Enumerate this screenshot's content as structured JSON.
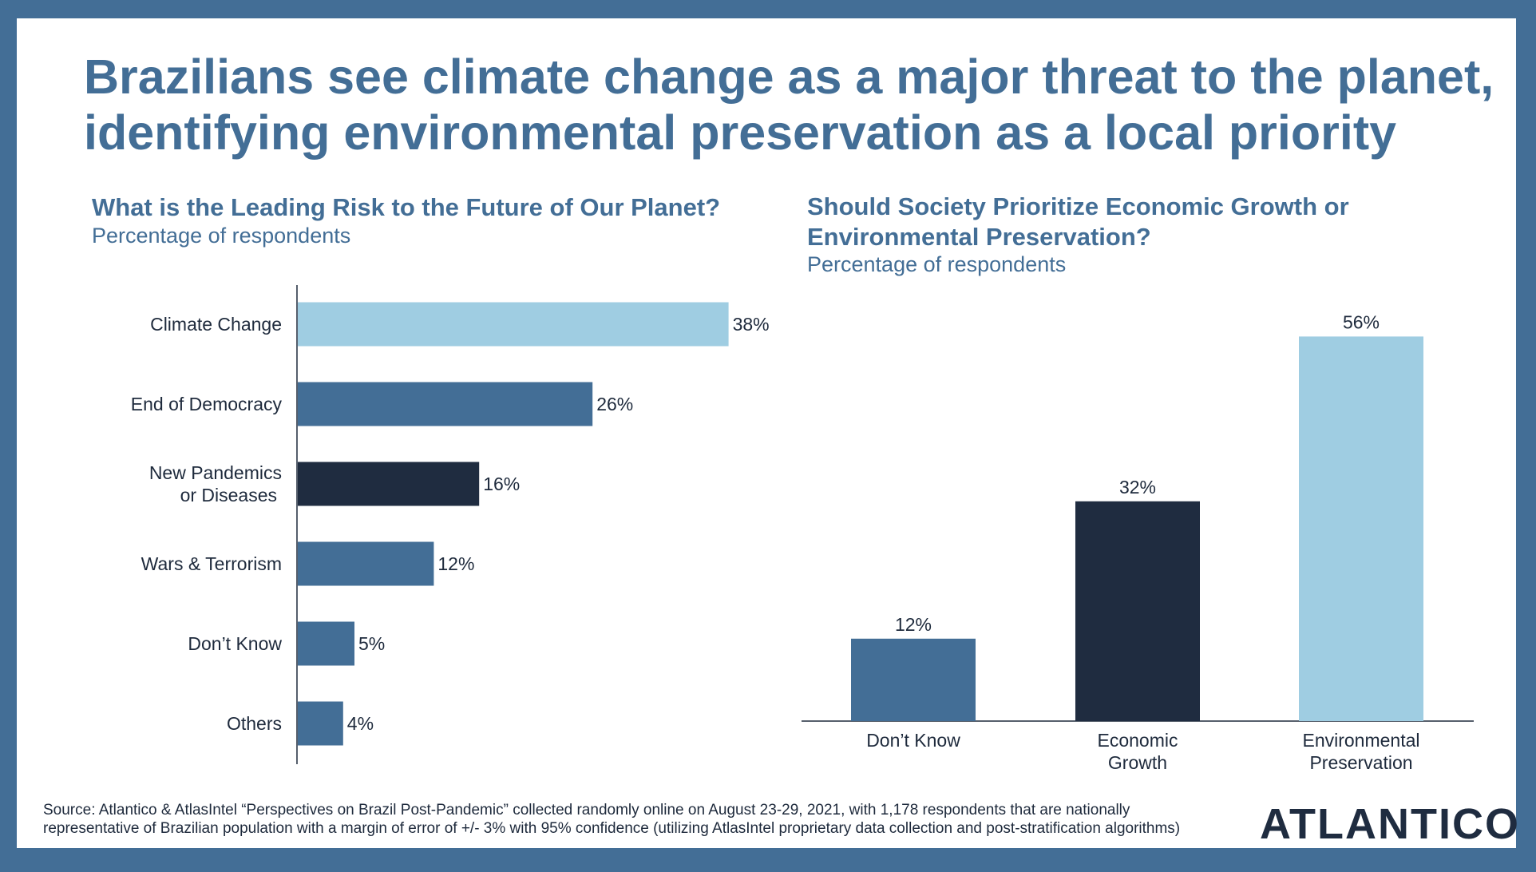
{
  "title": "Brazilians see climate change as a major threat to the planet, identifying environmental preservation as a local priority",
  "colors": {
    "frame": "#436E96",
    "light": "#9FCDE2",
    "mid": "#436E96",
    "dark": "#1F2C40",
    "text": "#1E2A3C"
  },
  "chart_data": [
    {
      "type": "bar",
      "orientation": "horizontal",
      "title": "What is the Leading Risk to the Future of Our Planet?",
      "subtitle": "Percentage of respondents",
      "categories": [
        "Climate Change",
        "End of Democracy",
        "New Pandemics\nor Diseases",
        "Wars & Terrorism",
        "Don’t Know",
        "Others"
      ],
      "values": [
        38,
        26,
        16,
        12,
        5,
        4
      ],
      "labels": [
        "38%",
        "26%",
        "16%",
        "12%",
        "5%",
        "4%"
      ],
      "bar_colors": [
        "#9FCDE2",
        "#436E96",
        "#1F2C40",
        "#436E96",
        "#436E96",
        "#436E96"
      ],
      "xlabel": "",
      "ylabel": "",
      "xlim": [
        0,
        40
      ],
      "grid": false,
      "legend": "none"
    },
    {
      "type": "bar",
      "orientation": "vertical",
      "title": "Should Society Prioritize Economic Growth or Environmental Preservation?",
      "subtitle": "Percentage of respondents",
      "categories": [
        "Don’t Know",
        "Economic\nGrowth",
        "Environmental\nPreservation"
      ],
      "values": [
        12,
        32,
        56
      ],
      "labels": [
        "12%",
        "32%",
        "56%"
      ],
      "bar_colors": [
        "#436E96",
        "#1F2C40",
        "#9FCDE2"
      ],
      "xlabel": "",
      "ylabel": "",
      "ylim": [
        0,
        60
      ],
      "grid": false,
      "legend": "none"
    }
  ],
  "source_line1": "Source: Atlantico & AtlasIntel “Perspectives on Brazil Post-Pandemic” collected randomly online on August 23-29, 2021, with 1,178 respondents that are nationally",
  "source_line2": "representative of Brazilian population with a margin of error of +/- 3% with 95% confidence (utilizing AtlasIntel proprietary data collection and post-stratification algorithms)",
  "logo": "ATLANTICO"
}
